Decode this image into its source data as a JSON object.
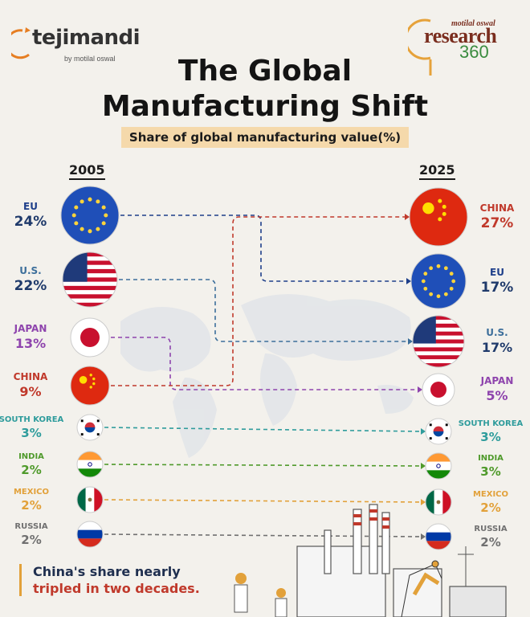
{
  "brand": {
    "left_name": "tejimandi",
    "left_tagline": "by motilal oswal",
    "right_small": "motilal oswal",
    "right_main": "research",
    "right_number": "360"
  },
  "header": {
    "title_line1": "The Global",
    "title_line2": "Manufacturing Shift",
    "subtitle": "Share of global manufacturing value(%)"
  },
  "colors": {
    "EU": "#1e3f8a",
    "U.S.": "#3d6f9b",
    "JAPAN": "#8e44ad",
    "CHINA": "#c0392b",
    "SOUTH KOREA": "#2f9c9c",
    "INDIA": "#4f9a2b",
    "MEXICO": "#e2a13a",
    "RUSSIA": "#707070"
  },
  "chart_data": {
    "type": "slope",
    "title": "The Global Manufacturing Shift",
    "subtitle": "Share of global manufacturing value(%)",
    "x": [
      "2005",
      "2025"
    ],
    "unit": "%",
    "series": [
      {
        "name": "EU",
        "y2005": 24,
        "y2025": 17,
        "rank2005": 1,
        "rank2025": 2
      },
      {
        "name": "U.S.",
        "y2005": 22,
        "y2025": 17,
        "rank2005": 2,
        "rank2025": 3
      },
      {
        "name": "JAPAN",
        "y2005": 13,
        "y2025": 5,
        "rank2005": 3,
        "rank2025": 4
      },
      {
        "name": "CHINA",
        "y2005": 9,
        "y2025": 27,
        "rank2005": 4,
        "rank2025": 1
      },
      {
        "name": "SOUTH KOREA",
        "y2005": 3,
        "y2025": 3,
        "rank2005": 5,
        "rank2025": 5
      },
      {
        "name": "INDIA",
        "y2005": 2,
        "y2025": 3,
        "rank2005": 6,
        "rank2025": 6
      },
      {
        "name": "MEXICO",
        "y2005": 2,
        "y2025": 2,
        "rank2005": 7,
        "rank2025": 7
      },
      {
        "name": "RUSSIA",
        "y2005": 2,
        "y2025": 2,
        "rank2005": 8,
        "rank2025": 8
      }
    ],
    "labels_2005": [
      {
        "name": "EU",
        "value": "24%"
      },
      {
        "name": "U.S.",
        "value": "22%"
      },
      {
        "name": "JAPAN",
        "value": "13%"
      },
      {
        "name": "CHINA",
        "value": "9%"
      },
      {
        "name": "SOUTH KOREA",
        "value": "3%"
      },
      {
        "name": "INDIA",
        "value": "2%"
      },
      {
        "name": "MEXICO",
        "value": "2%"
      },
      {
        "name": "RUSSIA",
        "value": "2%"
      }
    ],
    "labels_2025": [
      {
        "name": "CHINA",
        "value": "27%"
      },
      {
        "name": "EU",
        "value": "17%"
      },
      {
        "name": "U.S.",
        "value": "17%"
      },
      {
        "name": "JAPAN",
        "value": "5%"
      },
      {
        "name": "SOUTH KOREA",
        "value": "3%"
      },
      {
        "name": "INDIA",
        "value": "3%"
      },
      {
        "name": "MEXICO",
        "value": "2%"
      },
      {
        "name": "RUSSIA",
        "value": "2%"
      }
    ],
    "flags": {
      "EU": "eu-flag-icon",
      "U.S.": "us-flag-icon",
      "JAPAN": "japan-flag-icon",
      "CHINA": "china-flag-icon",
      "SOUTH KOREA": "south-korea-flag-icon",
      "INDIA": "india-flag-icon",
      "MEXICO": "mexico-flag-icon",
      "RUSSIA": "russia-flag-icon"
    }
  },
  "callout": {
    "line1": "China's share nearly",
    "line2": "tripled in two decades."
  }
}
